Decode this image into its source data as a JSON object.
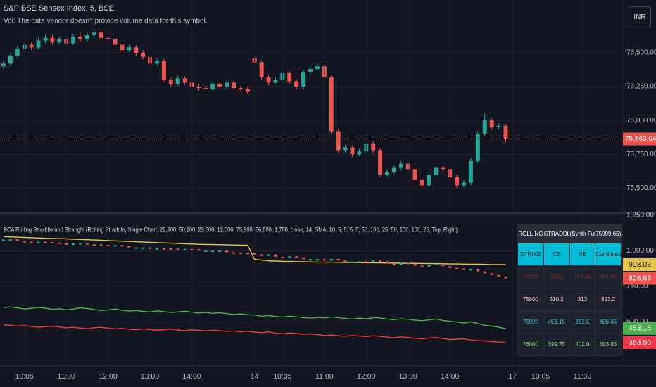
{
  "chart_data": [
    {
      "type": "candlestick",
      "title": "S&P BSE Sensex Index, 5, BSE",
      "subtitle": "Vol: The data vendor doesn't provide volume data for this symbol.",
      "up_color": "#26a69a",
      "down_color": "#ef5350",
      "open": [
        76400,
        76420,
        76480,
        76530,
        76560,
        76540,
        76590,
        76610,
        76580,
        76600,
        76570,
        76620,
        76600,
        76630,
        76650,
        76610,
        76600,
        76560,
        76520,
        76540,
        76500,
        76470,
        76420,
        76440,
        76300,
        76270,
        76310,
        76280,
        76250,
        76240,
        76230,
        76270,
        76250,
        76280,
        76240,
        76230,
        76460,
        76430,
        76320,
        76280,
        76300,
        76350,
        76290,
        76250,
        76360,
        76380,
        76400,
        76320,
        75920,
        75780,
        75800,
        75750,
        75770,
        75830,
        75780,
        75600,
        75620,
        75650,
        75680,
        75640,
        75560,
        75520,
        75600,
        75650,
        75640,
        75580,
        75520,
        75540,
        75700,
        75900,
        76000,
        75950,
        75960
      ],
      "high": [
        76445,
        76500,
        76550,
        76585,
        76580,
        76610,
        76635,
        76630,
        76620,
        76625,
        76640,
        76645,
        76650,
        76680,
        76670,
        76630,
        76615,
        76575,
        76560,
        76555,
        76520,
        76485,
        76460,
        76455,
        76320,
        76330,
        76325,
        76295,
        76270,
        76260,
        76290,
        76285,
        76300,
        76295,
        76255,
        76245,
        76480,
        76445,
        76335,
        76320,
        76370,
        76365,
        76305,
        76375,
        76400,
        76420,
        76415,
        76335,
        75935,
        75820,
        75815,
        75790,
        75850,
        75845,
        75795,
        75640,
        75670,
        75700,
        75695,
        75655,
        75575,
        75620,
        75670,
        75665,
        75655,
        75595,
        75560,
        75720,
        75920,
        76050,
        76015,
        75980,
        75975
      ],
      "low": [
        76380,
        76400,
        76465,
        76510,
        76520,
        76525,
        76570,
        76560,
        76565,
        76550,
        76555,
        76585,
        76580,
        76615,
        76595,
        76580,
        76540,
        76500,
        76505,
        76480,
        76450,
        76400,
        76405,
        76285,
        76250,
        76255,
        76260,
        76230,
        76220,
        76210,
        76215,
        76235,
        76235,
        76225,
        76215,
        76195,
        76410,
        76300,
        76260,
        76265,
        76285,
        76270,
        76230,
        76235,
        76345,
        76365,
        76300,
        75900,
        75760,
        75765,
        75730,
        75735,
        75755,
        75760,
        75580,
        75585,
        75605,
        75635,
        75620,
        75540,
        75500,
        75505,
        75585,
        75620,
        75560,
        75500,
        75505,
        75525,
        75685,
        75885,
        75930,
        75935,
        75840
      ],
      "close": [
        76420,
        76480,
        76530,
        76560,
        76540,
        76590,
        76610,
        76580,
        76600,
        76570,
        76620,
        76600,
        76630,
        76650,
        76610,
        76600,
        76560,
        76520,
        76540,
        76500,
        76470,
        76420,
        76440,
        76300,
        76270,
        76310,
        76280,
        76250,
        76240,
        76230,
        76270,
        76250,
        76280,
        76240,
        76230,
        76210,
        76430,
        76320,
        76280,
        76300,
        76350,
        76290,
        76250,
        76360,
        76380,
        76400,
        76320,
        75920,
        75780,
        75800,
        75750,
        75770,
        75830,
        75780,
        75600,
        75620,
        75650,
        75680,
        75640,
        75560,
        75520,
        75600,
        75650,
        75640,
        75580,
        75520,
        75540,
        75700,
        75900,
        76000,
        75950,
        75960,
        75863.04
      ],
      "price_label": "75,863.04",
      "xlim": [
        -0.5,
        88.5
      ],
      "ylim": [
        75330,
        76890
      ],
      "yticks": [
        {
          "value": 75500,
          "label": "75,500.00"
        },
        {
          "value": 75750,
          "label": "75,750.00"
        },
        {
          "value": 76000,
          "label": "76,000.00"
        },
        {
          "value": 76250,
          "label": "76,250.00"
        },
        {
          "value": 76500,
          "label": "76,500.00"
        }
      ],
      "grid": true
    },
    {
      "type": "line",
      "title": "BCA Rolling Straddle and Strangle (Rolling Straddle, Single Chart, 22,900, 50,100, 23,500, 12,000, 75,900, 56,800, 1,700, close, 14, SMA, 10, 5, 5, 5, 5, 50, 100, 25, 50, 100, 100, 20, Top, Right)",
      "series": [
        {
          "color": "#e8c547",
          "style": "line",
          "price_label": "903.08",
          "values": [
            1100,
            1098,
            1096,
            1094,
            1092,
            1090,
            1088,
            1087,
            1086,
            1084,
            1082,
            1080,
            1078,
            1076,
            1074,
            1072,
            1070,
            1068,
            1066,
            1064,
            1062,
            1060,
            1058,
            1056,
            1054,
            1052,
            1050,
            1048,
            1046,
            1045,
            1044,
            1043,
            1042,
            1041,
            1040,
            1039,
            940,
            935,
            930,
            928,
            926,
            925,
            924,
            923,
            922,
            921,
            920,
            920,
            919,
            918,
            918,
            917,
            916,
            916,
            915,
            914,
            914,
            913,
            912,
            912,
            911,
            910,
            910,
            909,
            908,
            908,
            907,
            906,
            906,
            905,
            904,
            904,
            903.08
          ]
        },
        {
          "color": "#ef5350",
          "up_color": "#26a69a",
          "style": "bars",
          "price_label": "806.65",
          "values": [
            1080,
            1081,
            1068,
            1064,
            1063,
            1064,
            1062,
            1058,
            1056,
            1043,
            1052,
            1054,
            1046,
            1045,
            1042,
            1039,
            1040,
            1036,
            1024,
            1024,
            1024,
            1016,
            1018,
            1017,
            1016,
            1012,
            1013,
            1012,
            1002,
            1002,
            1002,
            1002,
            990,
            988,
            986,
            984,
            976,
            964,
            975,
            958,
            950,
            962,
            954,
            942,
            942,
            942,
            932,
            943,
            932,
            922,
            924,
            926,
            918,
            932,
            926,
            912,
            903,
            916,
            908,
            896,
            888,
            900,
            910,
            892,
            880,
            876,
            872,
            872,
            856,
            842,
            830,
            820,
            806.65
          ]
        },
        {
          "color": "#4caf50",
          "style": "line",
          "price_label": "453.15",
          "values": [
            600,
            605,
            598,
            590,
            595,
            602,
            596,
            588,
            592,
            585,
            590,
            598,
            594,
            587,
            580,
            584,
            590,
            582,
            576,
            580,
            574,
            570,
            578,
            572,
            566,
            570,
            575,
            568,
            562,
            566,
            560,
            564,
            558,
            552,
            556,
            550,
            548,
            540,
            545,
            538,
            534,
            540,
            536,
            530,
            526,
            532,
            528,
            535,
            530,
            524,
            520,
            526,
            522,
            530,
            528,
            520,
            515,
            522,
            518,
            512,
            508,
            514,
            520,
            510,
            504,
            498,
            492,
            500,
            488,
            476,
            470,
            462,
            453.15
          ]
        },
        {
          "color": "#f23645",
          "style": "line",
          "price_label": "353.50",
          "values": [
            480,
            476,
            470,
            474,
            468,
            462,
            466,
            470,
            464,
            458,
            462,
            456,
            452,
            458,
            462,
            455,
            450,
            454,
            448,
            444,
            450,
            446,
            440,
            445,
            450,
            442,
            438,
            444,
            440,
            436,
            442,
            438,
            432,
            436,
            430,
            434,
            428,
            424,
            430,
            420,
            416,
            422,
            418,
            412,
            416,
            410,
            404,
            408,
            402,
            398,
            404,
            400,
            396,
            402,
            398,
            392,
            388,
            394,
            390,
            384,
            380,
            386,
            390,
            382,
            376,
            378,
            380,
            372,
            368,
            366,
            360,
            358,
            353.5
          ]
        }
      ],
      "xlim": [
        -0.5,
        88.5
      ],
      "xticks": [
        {
          "value": 3,
          "label": "10:05"
        },
        {
          "value": 9,
          "label": "11:00"
        },
        {
          "value": 15,
          "label": "12:00"
        },
        {
          "value": 21,
          "label": "13:00"
        },
        {
          "value": 27,
          "label": "14:00"
        },
        {
          "value": 36,
          "label": "14"
        },
        {
          "value": 40,
          "label": "10:05"
        },
        {
          "value": 46,
          "label": "11:00"
        },
        {
          "value": 52,
          "label": "12:00"
        },
        {
          "value": 58,
          "label": "13:00"
        },
        {
          "value": 64,
          "label": "14:00"
        },
        {
          "value": 73,
          "label": "17"
        },
        {
          "value": 77,
          "label": "10:05"
        },
        {
          "value": 83,
          "label": "11:00"
        }
      ],
      "ylim": [
        190,
        1255
      ],
      "yticks": [
        {
          "value": 500,
          "label": "500.00"
        },
        {
          "value": 750,
          "label": "750.00"
        },
        {
          "value": 1000,
          "label": "1,000.00"
        },
        {
          "value": 1250,
          "label": "1,250.00"
        }
      ],
      "grid": true
    }
  ],
  "currency": "INR",
  "table": {
    "title": [
      "ROLLING",
      "STRADDLE",
      "(Synth Fut:",
      "75999.65)"
    ],
    "header": [
      "STRIKE",
      "CE",
      "PE",
      "Combined"
    ],
    "rows": [
      [
        "75700",
        "568.2",
        "273.65",
        "841.85"
      ],
      [
        "75800",
        "510.2",
        "313",
        "823.2"
      ],
      [
        "75900",
        "453.15",
        "353.5",
        "806.65"
      ],
      [
        "76000",
        "399.75",
        "402.9",
        "803.65"
      ]
    ]
  }
}
